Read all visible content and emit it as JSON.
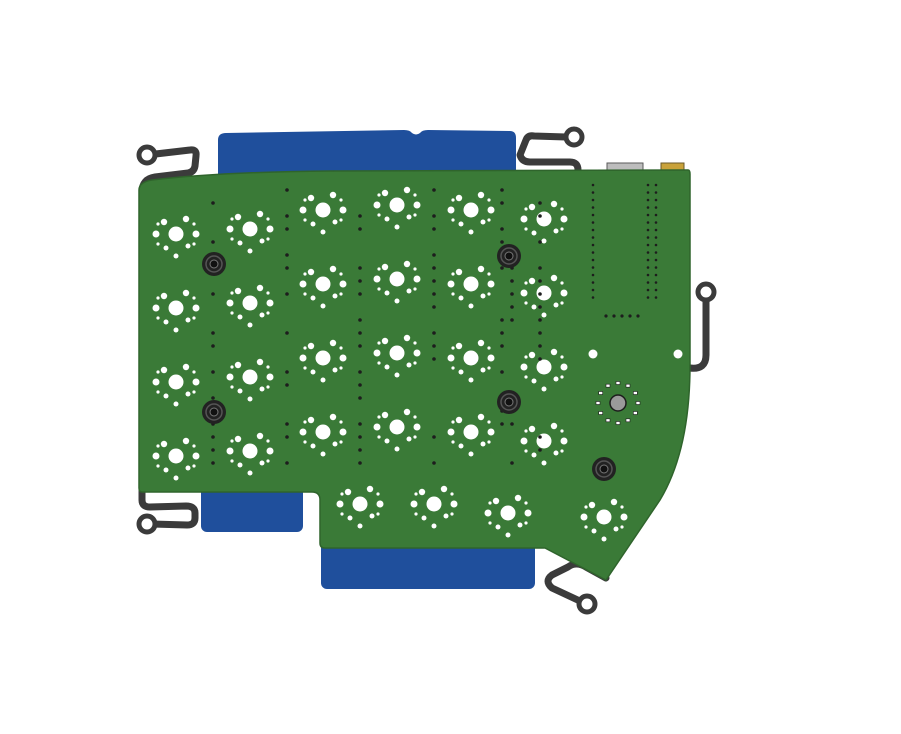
{
  "colors": {
    "background": "#ffffff",
    "pcb": "#3a7a37",
    "pcb_edge": "#2f642c",
    "plate": "#1f4f9c",
    "bumper": "#3b3b3b",
    "hole": "#ffffff",
    "via": "#1d1d1d",
    "standoff": "#222222"
  },
  "icons": {
    "standoff": "standoff-icon",
    "bumper": "bumper-arm-icon",
    "switch_footprint": "switch-footprint-icon",
    "connector": "usb-connector-icon",
    "rotary_encoder": "rotary-encoder-icon"
  },
  "layout_grid": {
    "columns": 6,
    "rows": 4,
    "thumb_keys": 4
  }
}
